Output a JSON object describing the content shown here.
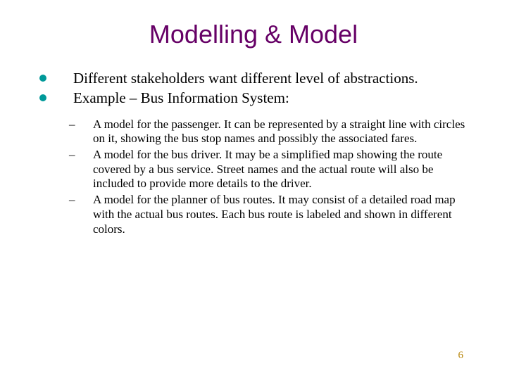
{
  "colors": {
    "title_color": "#660066",
    "bullet_color": "#009999",
    "body_text_color": "#000000",
    "pagenum_color": "#b8860b",
    "background": "#ffffff"
  },
  "typography": {
    "title_font": "Arial",
    "title_size_pt": 36,
    "body_font": "Times New Roman",
    "main_size_pt": 21,
    "sub_size_pt": 17
  },
  "title": "Modelling & Model",
  "main_items": [
    "Different stakeholders want different level of abstractions.",
    "Example – Bus Information System:"
  ],
  "sub_items": [
    "A model for the passenger. It can be represented by a straight line with circles on it, showing the bus stop names and possibly the associated fares.",
    "A model for the bus driver. It may be a simplified map showing the route covered by a bus service. Street names and the actual route will also be included to provide more details to the driver.",
    "A model for the planner of bus routes. It may consist of a detailed road map with the actual bus routes. Each bus route is labeled and shown in different colors."
  ],
  "page_number": "6"
}
